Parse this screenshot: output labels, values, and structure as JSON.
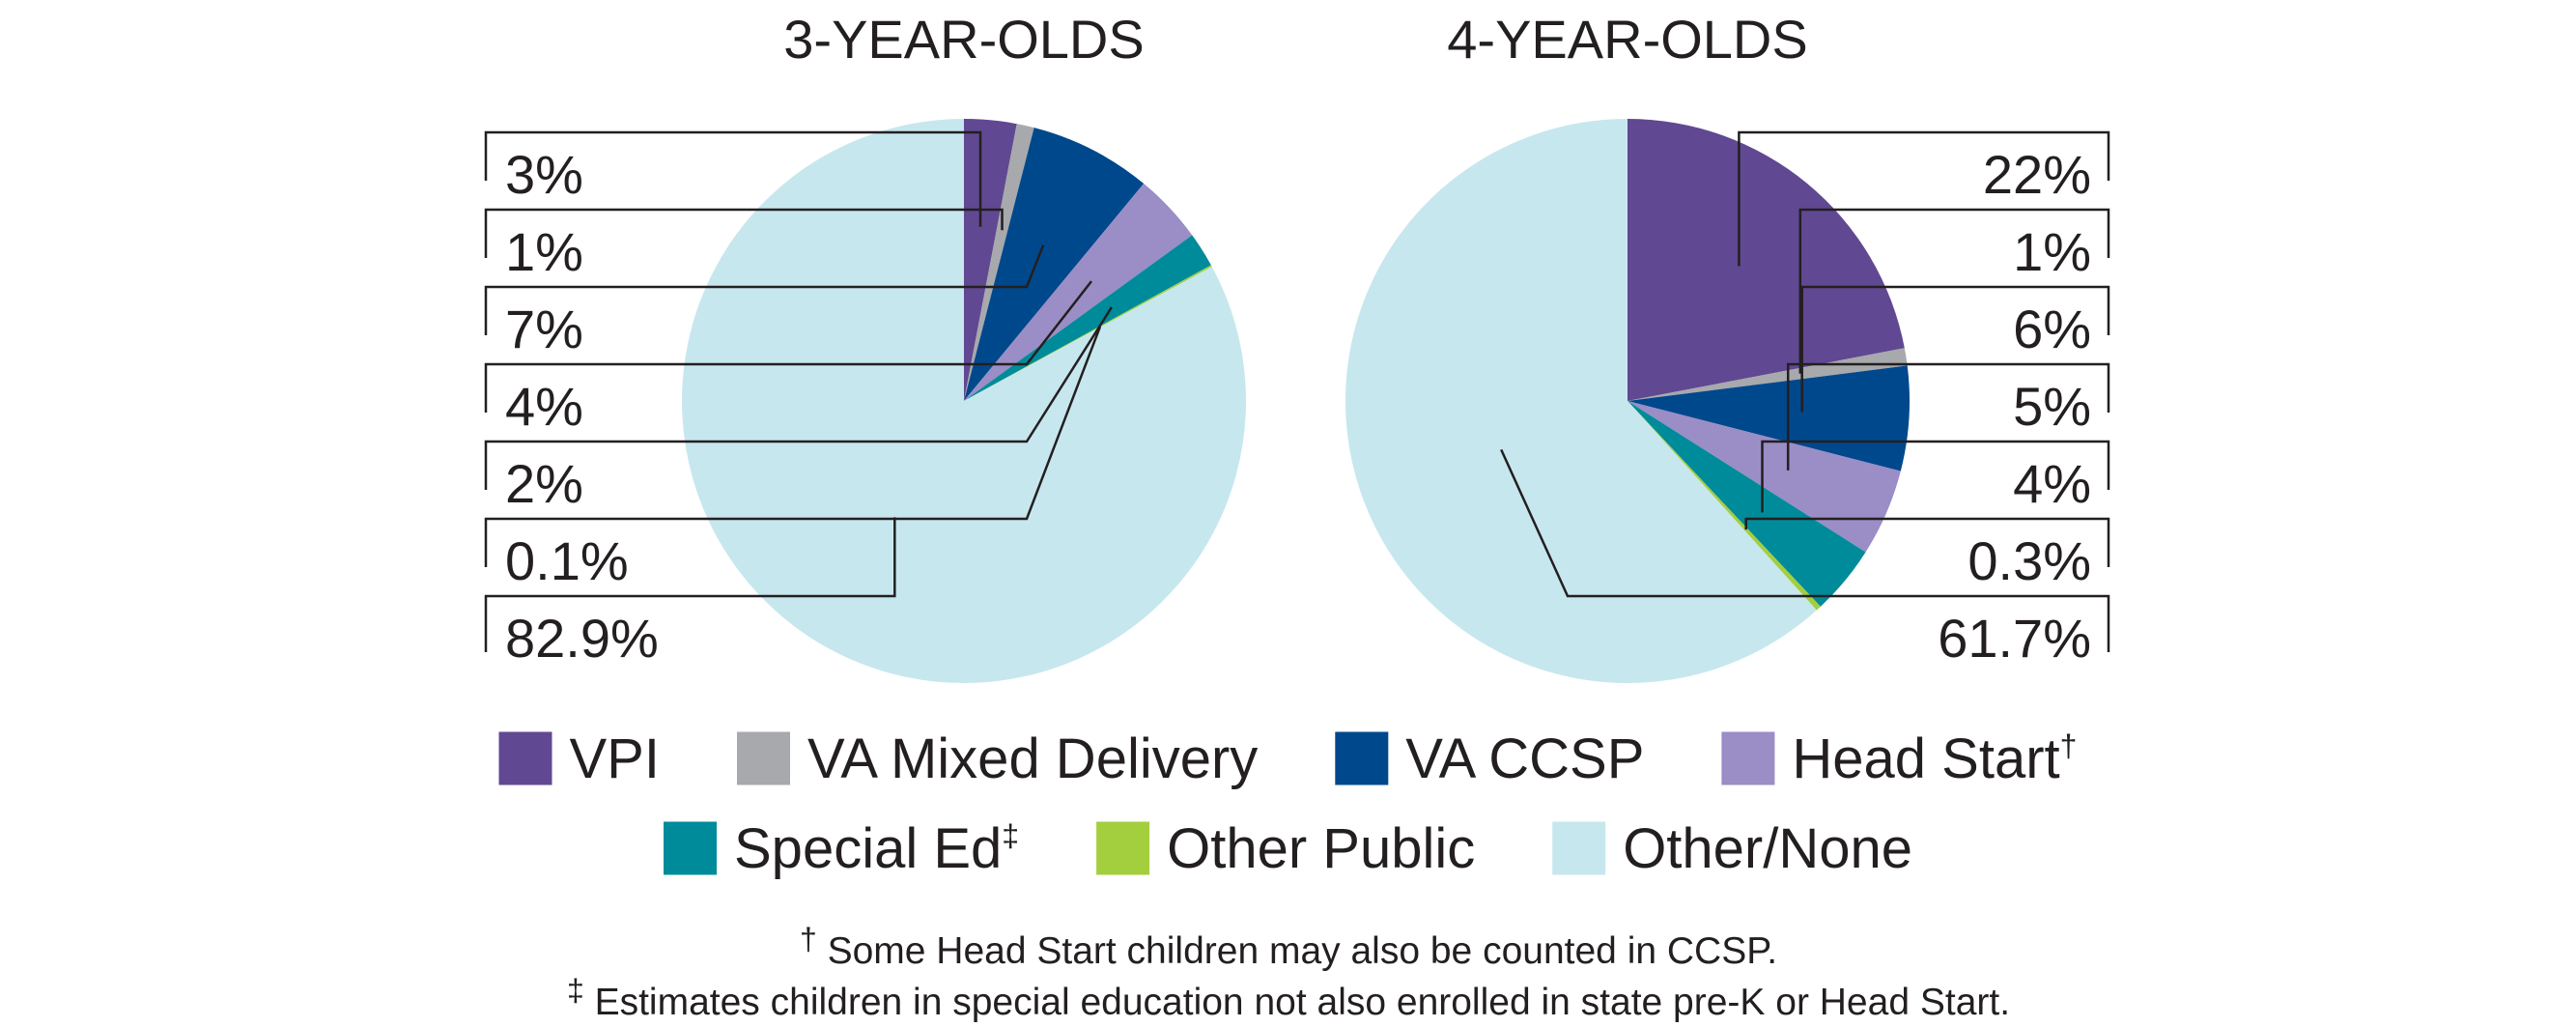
{
  "chart_data": [
    {
      "type": "pie",
      "title": "3-YEAR-OLDS",
      "slices": [
        {
          "category": "VPI",
          "value": 3,
          "label": "3%"
        },
        {
          "category": "VA Mixed Delivery",
          "value": 1,
          "label": "1%"
        },
        {
          "category": "VA CCSP",
          "value": 7,
          "label": "7%"
        },
        {
          "category": "Head Start",
          "value": 4,
          "label": "4%"
        },
        {
          "category": "Special Ed",
          "value": 2,
          "label": "2%"
        },
        {
          "category": "Other Public",
          "value": 0.1,
          "label": "0.1%"
        },
        {
          "category": "Other/None",
          "value": 82.9,
          "label": "82.9%"
        }
      ]
    },
    {
      "type": "pie",
      "title": "4-YEAR-OLDS",
      "slices": [
        {
          "category": "VPI",
          "value": 22,
          "label": "22%"
        },
        {
          "category": "VA Mixed Delivery",
          "value": 1,
          "label": "1%"
        },
        {
          "category": "VA CCSP",
          "value": 6,
          "label": "6%"
        },
        {
          "category": "Head Start",
          "value": 5,
          "label": "5%"
        },
        {
          "category": "Special Ed",
          "value": 4,
          "label": "4%"
        },
        {
          "category": "Other Public",
          "value": 0.3,
          "label": "0.3%"
        },
        {
          "category": "Other/None",
          "value": 61.7,
          "label": "61.7%"
        }
      ]
    }
  ],
  "legend": {
    "placement": "bottom",
    "items": [
      {
        "label": "VPI",
        "color": "#614892",
        "sup": ""
      },
      {
        "label": "VA Mixed Delivery",
        "color": "#a7a9ac",
        "sup": ""
      },
      {
        "label": "VA CCSP",
        "color": "#00488c",
        "sup": ""
      },
      {
        "label": "Head Start",
        "color": "#9b8dc6",
        "sup": "†"
      },
      {
        "label": "Special Ed",
        "color": "#008b9b",
        "sup": "‡"
      },
      {
        "label": "Other Public",
        "color": "#a3cf3e",
        "sup": ""
      },
      {
        "label": "Other/None",
        "color": "#c7e7ee",
        "sup": ""
      }
    ]
  },
  "footnotes": [
    {
      "mark": "†",
      "text": " Some Head Start children may also be counted in CCSP."
    },
    {
      "mark": "‡",
      "text": " Estimates children in special education not also enrolled in state pre-K or Head Start."
    }
  ]
}
